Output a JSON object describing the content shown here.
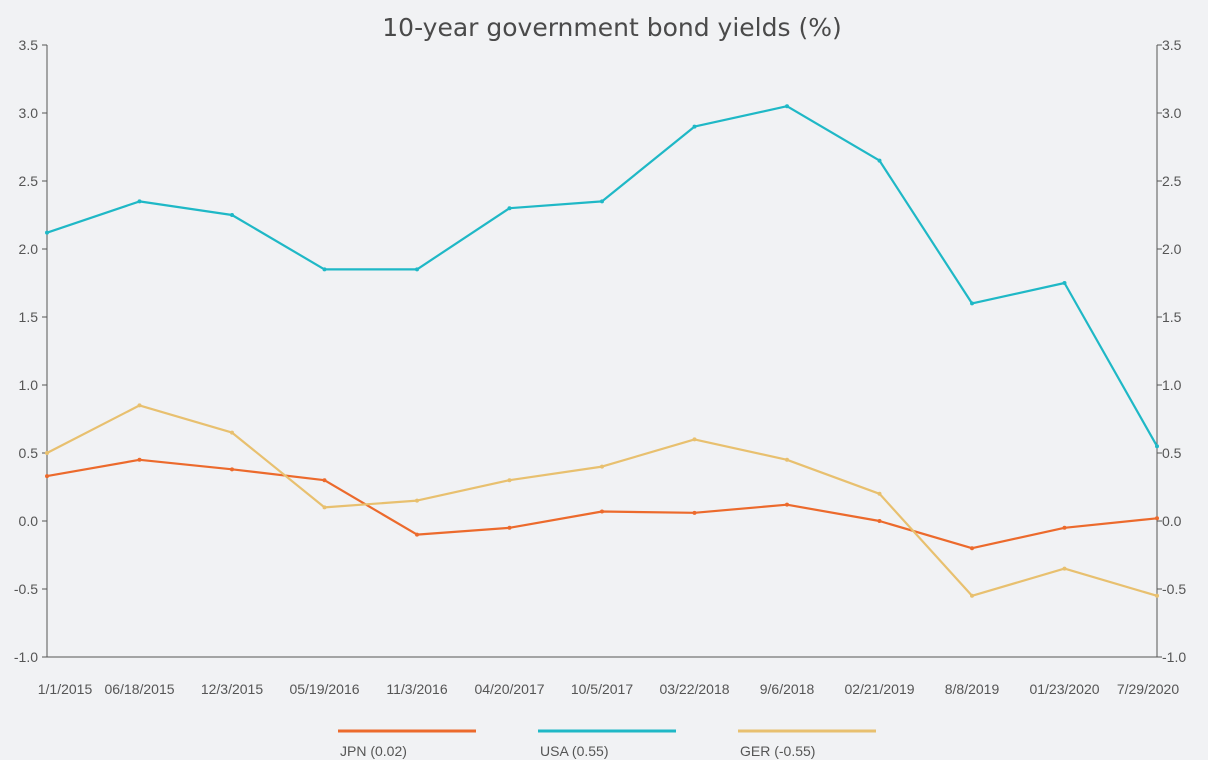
{
  "chart_data": {
    "type": "line",
    "title": "10-year government bond yields (%)",
    "xlabel": "",
    "ylabel": "",
    "ylim": [
      -1.0,
      3.5
    ],
    "yticks": [
      "-1.0",
      "-0.5",
      "0.0",
      "0.5",
      "1.0",
      "1.5",
      "2.0",
      "2.5",
      "3.0",
      "3.5"
    ],
    "ytick_values": [
      -1.0,
      -0.5,
      0.0,
      0.5,
      1.0,
      1.5,
      2.0,
      2.5,
      3.0,
      3.5
    ],
    "x_tick_labels": [
      "1/1/2015",
      "06/18/2015",
      "12/3/2015",
      "05/19/2016",
      "11/3/2016",
      "04/20/2017",
      "10/5/2017",
      "03/22/2018",
      "9/6/2018",
      "02/21/2019",
      "8/8/2019",
      "01/23/2020",
      "7/29/2020"
    ],
    "x": [
      "1/1/2015",
      "06/18/2015",
      "12/3/2015",
      "05/19/2016",
      "11/3/2016",
      "04/20/2017",
      "10/5/2017",
      "03/22/2018",
      "9/6/2018",
      "02/21/2019",
      "8/8/2019",
      "01/23/2020",
      "7/29/2020"
    ],
    "grid": false,
    "dual_y_axis": true,
    "legend_position": "bottom",
    "series": [
      {
        "name": "JPN (0.02)",
        "color": "#ec6a2c",
        "values": [
          0.33,
          0.45,
          0.38,
          0.3,
          -0.1,
          -0.05,
          0.07,
          0.06,
          0.12,
          0.0,
          -0.2,
          -0.05,
          0.02
        ]
      },
      {
        "name": "USA (0.55)",
        "color": "#1fb8c6",
        "values": [
          2.12,
          2.35,
          2.25,
          1.85,
          1.85,
          2.3,
          2.35,
          2.9,
          3.05,
          2.65,
          1.6,
          1.75,
          0.55
        ]
      },
      {
        "name": "GER (-0.55)",
        "color": "#e8c06f",
        "values": [
          0.5,
          0.85,
          0.65,
          0.1,
          0.15,
          0.3,
          0.4,
          0.6,
          0.45,
          0.2,
          -0.55,
          -0.35,
          -0.55
        ]
      }
    ]
  }
}
